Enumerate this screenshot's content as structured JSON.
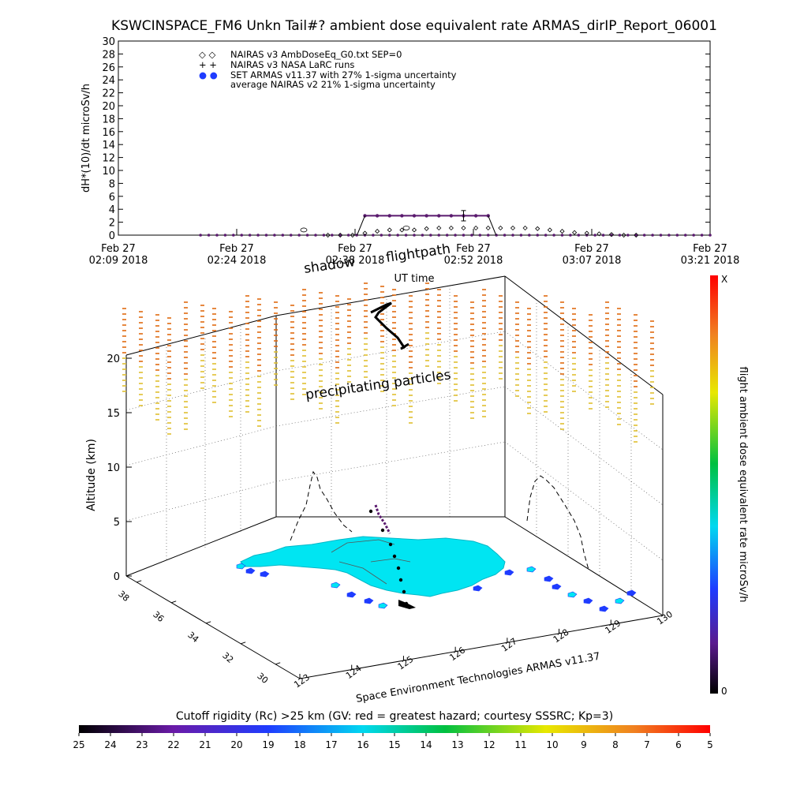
{
  "title": "KSWCINSPACE_FM6 Unkn Tail#? ambient dose equivalent rate ARMAS_dirIP_Report_06001",
  "time_series": {
    "ylabel": "dH*(10)/dt microSv/h",
    "xlabel": "UT time",
    "yticks": [
      "0",
      "2",
      "4",
      "6",
      "8",
      "10",
      "12",
      "14",
      "16",
      "18",
      "20",
      "22",
      "24",
      "26",
      "28",
      "30"
    ],
    "xticks": [
      {
        "line1": "Feb 27",
        "line2": "02:09 2018"
      },
      {
        "line1": "Feb 27",
        "line2": "02:24 2018"
      },
      {
        "line1": "Feb 27",
        "line2": "02:38 2018"
      },
      {
        "line1": "Feb 27",
        "line2": "02:52 2018"
      },
      {
        "line1": "Feb 27",
        "line2": "03:07 2018"
      },
      {
        "line1": "Feb 27",
        "line2": "03:21 2018"
      }
    ],
    "legend": [
      {
        "symbol": "◇ ◇",
        "text": "NAIRAS v3 AmbDoseEq_G0.txt SEP=0"
      },
      {
        "symbol": "+ +",
        "text": "NAIRAS v3 NASA LaRC runs"
      },
      {
        "symbol": "● ●",
        "text": "SET ARMAS v11.37 with 27% 1-sigma uncertainty"
      },
      {
        "symbol": "",
        "text": "average NAIRAS v2 21% 1-sigma uncertainty"
      }
    ]
  },
  "three_d": {
    "zlabel": "Altitude (km)",
    "zticks": [
      "0",
      "5",
      "10",
      "15",
      "20"
    ],
    "lat_ticks": [
      "30",
      "32",
      "34",
      "36",
      "38"
    ],
    "lon_ticks": [
      "123",
      "124",
      "125",
      "126",
      "127",
      "128",
      "129",
      "130"
    ],
    "annotation_shadow": "shadow",
    "annotation_flightpath": "flightpath",
    "annotation_precip": "precipitating particles",
    "credit": "Space Environment Technologies ARMAS v11.37"
  },
  "right_colorbar": {
    "label": "flight ambient dose equivalent rate microSv/h",
    "top": "X",
    "bottom": "0"
  },
  "bottom_colorbar": {
    "title": "Cutoff rigidity (Rc) >25 km (GV: red = greatest hazard; courtesy SSSRC; Kp=3)",
    "ticks": [
      "25",
      "24",
      "23",
      "22",
      "21",
      "20",
      "19",
      "18",
      "17",
      "16",
      "15",
      "14",
      "13",
      "12",
      "11",
      "10",
      "9",
      "8",
      "7",
      "6",
      "5"
    ]
  },
  "colors": {
    "route_purple": "#5a1a6e",
    "land_cyan": "#00e5f2",
    "water_blue": "#1f3cff",
    "precip_orange": "#e06a10",
    "precip_yellow": "#e0c030"
  },
  "chart_data": {
    "type": "line",
    "title": "KSWCINSPACE_FM6 Unkn Tail#? ambient dose equivalent rate ARMAS_dirIP_Report_06001",
    "xlabel": "UT time",
    "ylabel": "dH*(10)/dt microSv/h",
    "ylim": [
      0,
      30
    ],
    "x_time_ticks": [
      "02:09",
      "02:24",
      "02:38",
      "02:52",
      "03:07",
      "03:21"
    ],
    "series": [
      {
        "name": "SET ARMAS v11.37 with 27% 1-sigma uncertainty",
        "x_minutes": [
          20,
          22,
          24,
          26,
          28,
          30,
          32,
          34,
          36,
          38,
          40,
          42,
          44,
          46,
          48,
          50,
          52,
          54,
          56,
          58,
          60,
          62,
          64,
          66,
          68,
          70,
          72,
          74,
          76,
          78,
          80,
          82,
          84,
          86,
          88,
          90,
          92,
          94,
          96,
          98,
          100,
          102,
          104,
          106,
          108,
          110,
          112,
          114,
          116,
          118,
          120,
          122,
          124,
          126,
          128,
          130,
          132,
          134,
          136,
          138,
          140,
          142,
          144
        ],
        "values": [
          0,
          0,
          0,
          0,
          0,
          0,
          0,
          0,
          0,
          0,
          0,
          0,
          0,
          0,
          0,
          0,
          0,
          0,
          0,
          0,
          0,
          0,
          0,
          0,
          0,
          0,
          0,
          0,
          0,
          0,
          0,
          0,
          0,
          0,
          0,
          0,
          0,
          0,
          0,
          0,
          0,
          0,
          0,
          0,
          0,
          0,
          0,
          0,
          0,
          0,
          0,
          0,
          0,
          0,
          0,
          0,
          0,
          0,
          0,
          0,
          0,
          0,
          0
        ],
        "segment_high_x_minutes": [
          60,
          63,
          66,
          69,
          72,
          75,
          78,
          81,
          84,
          87,
          90
        ],
        "segment_high_values": [
          3,
          3,
          3,
          3,
          3,
          3,
          3,
          3,
          3,
          3,
          3
        ]
      },
      {
        "name": "NAIRAS v3 AmbDoseEq_G0.txt SEP=0",
        "x_minutes": [
          35,
          38,
          41,
          44,
          47,
          50,
          53,
          56,
          59,
          62,
          65,
          68,
          71,
          74,
          77,
          80,
          83,
          86,
          89,
          92,
          95,
          98,
          101,
          104,
          107,
          110
        ],
        "values": [
          0,
          0,
          0,
          0.3,
          0.6,
          0.8,
          0.8,
          0.8,
          1.0,
          1.1,
          1.1,
          1.1,
          1.1,
          1.1,
          1.1,
          1.1,
          1.1,
          1.0,
          0.8,
          0.6,
          0.4,
          0.3,
          0.2,
          0.1,
          0,
          0
        ]
      }
    ],
    "time_range_minutes": [
      0,
      72
    ]
  }
}
